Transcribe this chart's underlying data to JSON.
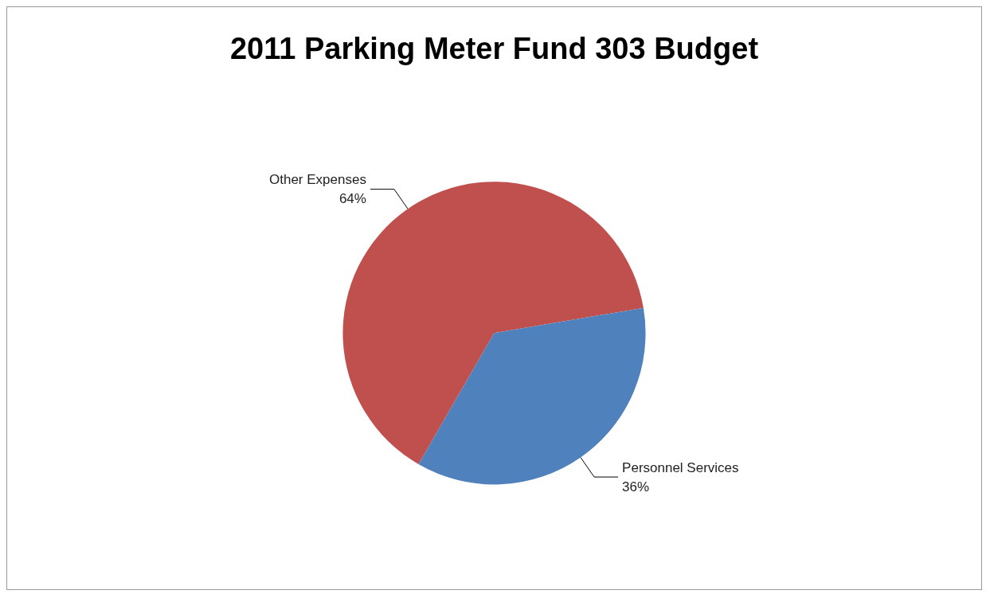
{
  "chart_data": {
    "type": "pie",
    "title": "2011 Parking Meter Fund 303 Budget",
    "categories": [
      "Other Expenses",
      "Personnel Services"
    ],
    "values": [
      64,
      36
    ],
    "value_labels": [
      "64%",
      "36%"
    ],
    "colors": [
      "#c0504d",
      "#4f81bd"
    ],
    "legend": false
  }
}
